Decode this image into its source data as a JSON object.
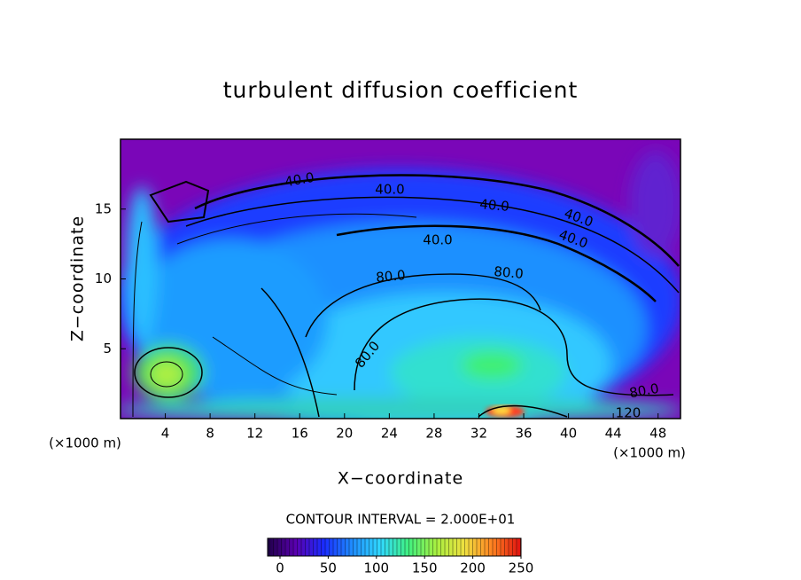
{
  "chart_data": {
    "type": "contour",
    "title": "turbulent diffusion coefficient",
    "x_label": "X−coordinate",
    "y_label": "Z−coordinate",
    "x_unit": "(×1000 m)",
    "xlim": [
      0,
      50
    ],
    "ylim": [
      0,
      20
    ],
    "xticks": [
      4,
      8,
      12,
      16,
      20,
      24,
      28,
      32,
      36,
      40,
      44,
      48
    ],
    "yticks": [
      5,
      10,
      15
    ],
    "contour_interval": "CONTOUR INTERVAL = 2.000E+01",
    "contour_labels": [
      "40.0",
      "40.0",
      "40.0",
      "40.0",
      "40.0",
      "40.0",
      "80.0",
      "80.0",
      "80.0",
      "80.0",
      "120"
    ],
    "colorbar": {
      "clim": [
        0,
        250
      ],
      "ticks": [
        0,
        50,
        100,
        150,
        200,
        250
      ],
      "colormap": [
        "#20004a",
        "#5a00b0",
        "#1a2cff",
        "#1f8cff",
        "#30d8ff",
        "#40f080",
        "#a8f040",
        "#f0e040",
        "#ff8020",
        "#e01010"
      ]
    }
  }
}
